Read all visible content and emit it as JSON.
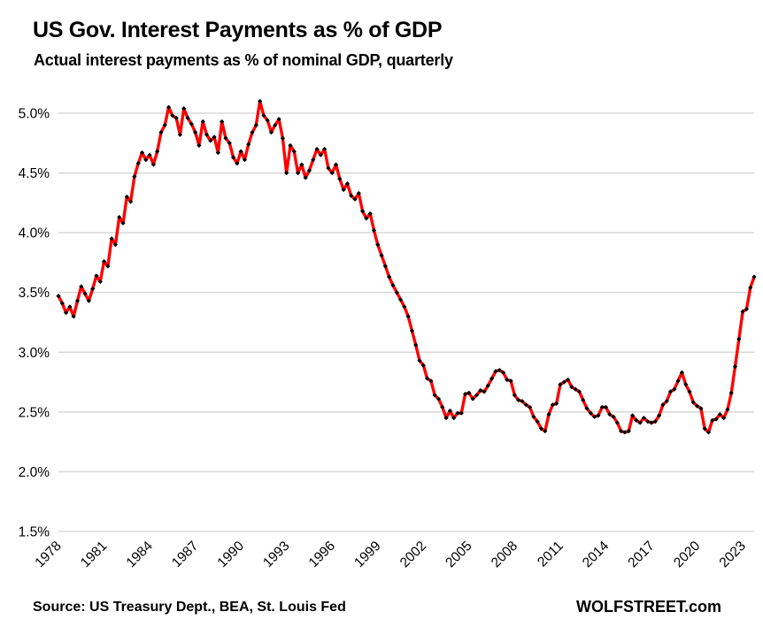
{
  "page": {
    "title": "US Gov. Interest Payments as % of GDP",
    "subtitle": "Actual interest payments as % of nominal GDP, quarterly"
  },
  "footer": {
    "source": "Source: US Treasury Dept., BEA, St. Louis Fed",
    "brand": "WOLFSTREET.com"
  },
  "chart_data": {
    "type": "line",
    "title": "US Gov. Interest Payments as % of GDP",
    "subtitle": "Actual interest payments as % of nominal GDP, quarterly",
    "frequency": "quarterly",
    "start_year": 1978,
    "end_year": 2023,
    "xlabel": "",
    "ylabel": "",
    "ylim": [
      1.5,
      5.0
    ],
    "y_tick_step": 0.5,
    "grid": true,
    "legend": "none",
    "x_tick_labels": [
      "1978",
      "1981",
      "1984",
      "1987",
      "1990",
      "1993",
      "1996",
      "1999",
      "2002",
      "2005",
      "2008",
      "2011",
      "2014",
      "2017",
      "2020",
      "2023"
    ],
    "x_tick_every_n_points": 12,
    "y_tick_labels": [
      "5.0%",
      "4.5%",
      "4.0%",
      "3.5%",
      "3.0%",
      "2.5%",
      "2.0%",
      "1.5%"
    ],
    "line_color": "#FF0000",
    "marker_color": "#000000",
    "gridline_color": "#D9D9D9",
    "series": [
      {
        "name": "Interest payments as % of GDP",
        "values": [
          3.47,
          3.41,
          3.33,
          3.38,
          3.3,
          3.43,
          3.55,
          3.49,
          3.43,
          3.53,
          3.64,
          3.59,
          3.76,
          3.72,
          3.95,
          3.9,
          4.13,
          4.08,
          4.3,
          4.26,
          4.47,
          4.58,
          4.67,
          4.61,
          4.65,
          4.57,
          4.68,
          4.84,
          4.9,
          5.05,
          4.98,
          4.96,
          4.82,
          5.04,
          4.96,
          4.91,
          4.84,
          4.73,
          4.93,
          4.82,
          4.77,
          4.8,
          4.67,
          4.93,
          4.79,
          4.75,
          4.63,
          4.58,
          4.68,
          4.61,
          4.74,
          4.84,
          4.9,
          5.1,
          4.98,
          4.94,
          4.84,
          4.9,
          4.95,
          4.79,
          4.5,
          4.73,
          4.68,
          4.5,
          4.57,
          4.46,
          4.52,
          4.61,
          4.7,
          4.65,
          4.7,
          4.54,
          4.5,
          4.57,
          4.45,
          4.36,
          4.41,
          4.31,
          4.28,
          4.33,
          4.18,
          4.12,
          4.16,
          4.02,
          3.9,
          3.81,
          3.72,
          3.63,
          3.56,
          3.5,
          3.44,
          3.38,
          3.3,
          3.18,
          3.06,
          2.93,
          2.89,
          2.78,
          2.76,
          2.64,
          2.61,
          2.54,
          2.45,
          2.51,
          2.45,
          2.49,
          2.49,
          2.65,
          2.66,
          2.61,
          2.64,
          2.68,
          2.67,
          2.72,
          2.78,
          2.84,
          2.85,
          2.83,
          2.77,
          2.76,
          2.64,
          2.6,
          2.59,
          2.56,
          2.54,
          2.46,
          2.42,
          2.36,
          2.34,
          2.48,
          2.56,
          2.57,
          2.73,
          2.75,
          2.77,
          2.71,
          2.69,
          2.67,
          2.6,
          2.53,
          2.49,
          2.46,
          2.47,
          2.54,
          2.54,
          2.48,
          2.46,
          2.41,
          2.34,
          2.33,
          2.34,
          2.47,
          2.43,
          2.41,
          2.45,
          2.42,
          2.41,
          2.42,
          2.47,
          2.56,
          2.59,
          2.67,
          2.69,
          2.76,
          2.83,
          2.73,
          2.67,
          2.58,
          2.55,
          2.53,
          2.36,
          2.33,
          2.43,
          2.44,
          2.48,
          2.45,
          2.52,
          2.66,
          2.88,
          3.11,
          3.34,
          3.36,
          3.54,
          3.63
        ]
      }
    ]
  }
}
